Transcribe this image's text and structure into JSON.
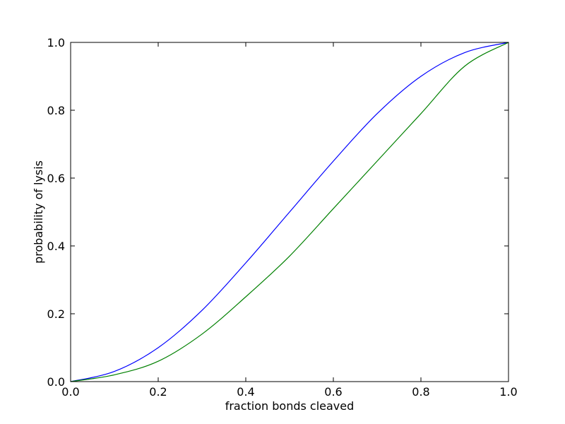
{
  "chart_data": {
    "type": "line",
    "title": "",
    "xlabel": "fraction bonds cleaved",
    "ylabel": "probability of lysis",
    "xlim": [
      0.0,
      1.0
    ],
    "ylim": [
      0.0,
      1.0
    ],
    "xticks": [
      0.0,
      0.2,
      0.4,
      0.6,
      0.8,
      1.0
    ],
    "yticks": [
      0.0,
      0.2,
      0.4,
      0.6,
      0.8,
      1.0
    ],
    "xtick_labels": [
      "0.0",
      "0.2",
      "0.4",
      "0.6",
      "0.8",
      "1.0"
    ],
    "ytick_labels": [
      "0.0",
      "0.2",
      "0.4",
      "0.6",
      "0.8",
      "1.0"
    ],
    "grid": false,
    "legend": "none",
    "x": [
      0.0,
      0.1,
      0.2,
      0.3,
      0.4,
      0.5,
      0.6,
      0.7,
      0.8,
      0.9,
      1.0
    ],
    "series": [
      {
        "color": "#0000ff",
        "values": [
          0.0,
          0.03,
          0.1,
          0.21,
          0.35,
          0.5,
          0.65,
          0.79,
          0.9,
          0.97,
          1.0
        ]
      },
      {
        "color": "#008000",
        "values": [
          0.0,
          0.02,
          0.06,
          0.14,
          0.25,
          0.37,
          0.51,
          0.65,
          0.79,
          0.93,
          1.0
        ]
      }
    ]
  }
}
